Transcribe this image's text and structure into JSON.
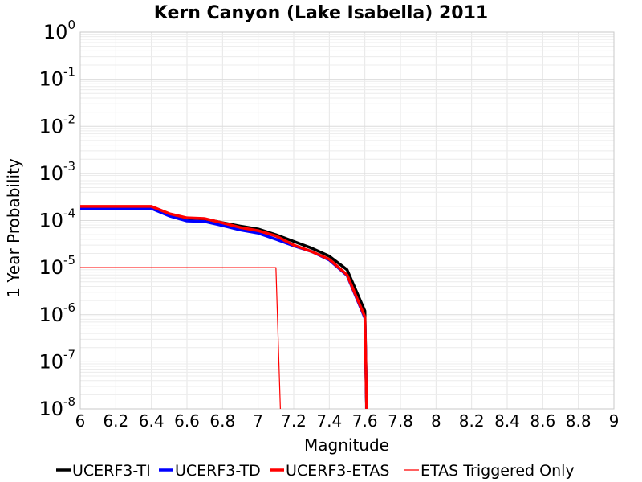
{
  "chart_data": {
    "type": "line",
    "title": "Kern Canyon (Lake Isabella) 2011",
    "xlabel": "Magnitude",
    "ylabel": "1 Year Probability",
    "xlim": [
      6,
      9
    ],
    "ylim": [
      1e-08,
      1
    ],
    "yscale": "log",
    "grid": true,
    "legend_position": "bottom",
    "x_ticks": [
      "6",
      "6.2",
      "6.4",
      "6.6",
      "6.8",
      "7",
      "7.2",
      "7.4",
      "7.6",
      "7.8",
      "8",
      "8.2",
      "8.4",
      "8.6",
      "8.8",
      "9"
    ],
    "y_ticks": [
      {
        "base": "10",
        "exp": "0"
      },
      {
        "base": "10",
        "exp": "-1"
      },
      {
        "base": "10",
        "exp": "-2"
      },
      {
        "base": "10",
        "exp": "-3"
      },
      {
        "base": "10",
        "exp": "-4"
      },
      {
        "base": "10",
        "exp": "-5"
      },
      {
        "base": "10",
        "exp": "-6"
      },
      {
        "base": "10",
        "exp": "-7"
      },
      {
        "base": "10",
        "exp": "-8"
      }
    ],
    "series": [
      {
        "name": "UCERF3-TI",
        "color": "#000000",
        "style": "thick",
        "points": [
          [
            6.0,
            0.00019
          ],
          [
            6.1,
            0.00019
          ],
          [
            6.2,
            0.00019
          ],
          [
            6.3,
            0.00019
          ],
          [
            6.4,
            0.00019
          ],
          [
            6.5,
            0.000135
          ],
          [
            6.6,
            0.000112
          ],
          [
            6.7,
            0.000108
          ],
          [
            6.8,
            9e-05
          ],
          [
            6.9,
            7.6e-05
          ],
          [
            7.0,
            6.6e-05
          ],
          [
            7.1,
            5e-05
          ],
          [
            7.2,
            3.6e-05
          ],
          [
            7.3,
            2.6e-05
          ],
          [
            7.4,
            1.75e-05
          ],
          [
            7.5,
            9e-06
          ],
          [
            7.6,
            1.2e-06
          ],
          [
            7.61,
            1e-08
          ]
        ]
      },
      {
        "name": "UCERF3-TD",
        "color": "#0000ff",
        "style": "thick",
        "points": [
          [
            6.0,
            0.00018
          ],
          [
            6.1,
            0.00018
          ],
          [
            6.2,
            0.00018
          ],
          [
            6.3,
            0.00018
          ],
          [
            6.4,
            0.00018
          ],
          [
            6.5,
            0.000125
          ],
          [
            6.6,
            9.8e-05
          ],
          [
            6.7,
            9.5e-05
          ],
          [
            6.8,
            7.8e-05
          ],
          [
            6.9,
            6.3e-05
          ],
          [
            7.0,
            5.4e-05
          ],
          [
            7.1,
            4e-05
          ],
          [
            7.2,
            2.9e-05
          ],
          [
            7.3,
            2.2e-05
          ],
          [
            7.4,
            1.45e-05
          ],
          [
            7.5,
            6.8e-06
          ],
          [
            7.6,
            8.5e-07
          ],
          [
            7.61,
            1e-08
          ]
        ]
      },
      {
        "name": "UCERF3-ETAS",
        "color": "#ff0000",
        "style": "thick",
        "points": [
          [
            6.0,
            0.0002
          ],
          [
            6.1,
            0.0002
          ],
          [
            6.2,
            0.0002
          ],
          [
            6.3,
            0.0002
          ],
          [
            6.4,
            0.0002
          ],
          [
            6.5,
            0.00014
          ],
          [
            6.6,
            0.000114
          ],
          [
            6.7,
            0.00011
          ],
          [
            6.8,
            8.9e-05
          ],
          [
            6.9,
            7.1e-05
          ],
          [
            7.0,
            6.1e-05
          ],
          [
            7.1,
            4.7e-05
          ],
          [
            7.2,
            3e-05
          ],
          [
            7.3,
            2.2e-05
          ],
          [
            7.4,
            1.5e-05
          ],
          [
            7.5,
            7e-06
          ],
          [
            7.6,
            9e-07
          ],
          [
            7.61,
            1e-08
          ]
        ]
      },
      {
        "name": "ETAS Triggered Only",
        "color": "#ff0000",
        "style": "thin",
        "points": [
          [
            6.0,
            1e-05
          ],
          [
            6.2,
            1e-05
          ],
          [
            6.4,
            1e-05
          ],
          [
            6.6,
            1e-05
          ],
          [
            6.8,
            1e-05
          ],
          [
            7.0,
            1e-05
          ],
          [
            7.1,
            1e-05
          ],
          [
            7.125,
            1e-08
          ]
        ]
      }
    ]
  }
}
